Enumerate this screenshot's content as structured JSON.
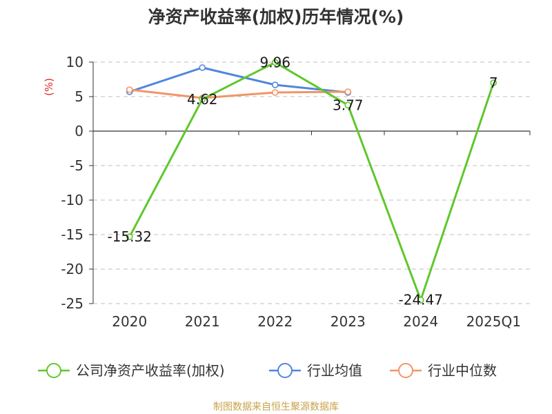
{
  "chart_data": {
    "type": "line",
    "title": "净资产收益率(加权)历年情况(%)",
    "unit_label": "(%)",
    "categories": [
      "2020",
      "2021",
      "2022",
      "2023",
      "2024",
      "2025Q1"
    ],
    "ylim": [
      -25,
      10
    ],
    "yticks": [
      10,
      5,
      0,
      -5,
      -10,
      -15,
      -20,
      -25
    ],
    "grid": true,
    "legend_position": "bottom",
    "series": [
      {
        "name": "公司净资产收益率(加权)",
        "color": "#5ec72b",
        "values": [
          -15.32,
          4.62,
          9.96,
          3.77,
          -24.47,
          7
        ],
        "labels": [
          "-15.32",
          "4.62",
          "9.96",
          "3.77",
          "-24.47",
          "7"
        ]
      },
      {
        "name": "行业均值",
        "color": "#4f86dd",
        "values": [
          5.7,
          9.2,
          6.7,
          5.6,
          null,
          null
        ]
      },
      {
        "name": "行业中位数",
        "color": "#f29467",
        "values": [
          6.0,
          4.8,
          5.6,
          5.7,
          null,
          null
        ]
      }
    ]
  },
  "footer": {
    "source": "制图数据来自恒生聚源数据库"
  }
}
